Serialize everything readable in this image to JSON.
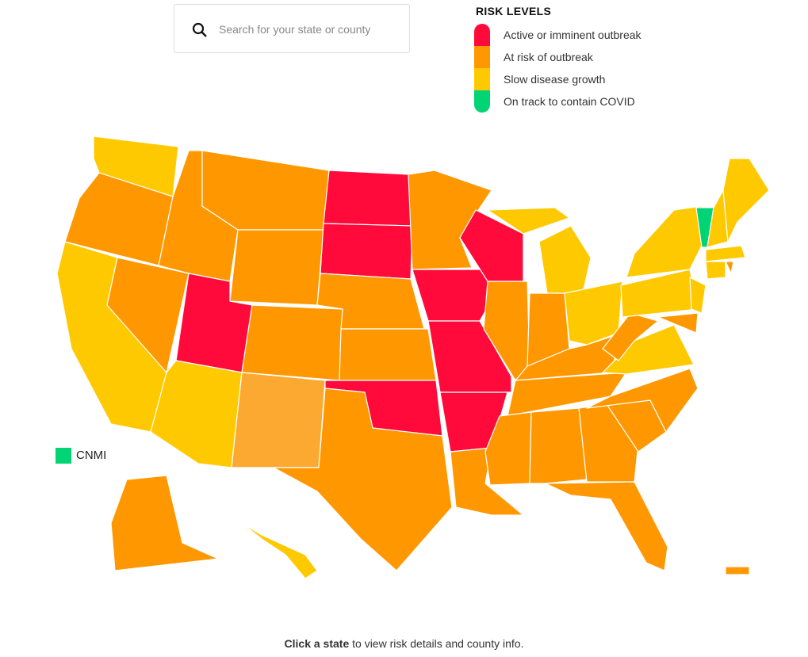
{
  "search": {
    "placeholder": "Search for your state or county"
  },
  "legend": {
    "title": "RISK LEVELS",
    "items": [
      {
        "label": "Active or imminent outbreak",
        "color": "#ff0a3a"
      },
      {
        "label": "At risk of outbreak",
        "color": "#ff9800"
      },
      {
        "label": "Slow disease growth",
        "color": "#ffc900"
      },
      {
        "label": "On track to contain COVID",
        "color": "#00d474"
      }
    ]
  },
  "cnmi": {
    "label": "CNMI"
  },
  "footer": {
    "emphasis": "Click a state",
    "text": "to view risk details and county info."
  }
}
